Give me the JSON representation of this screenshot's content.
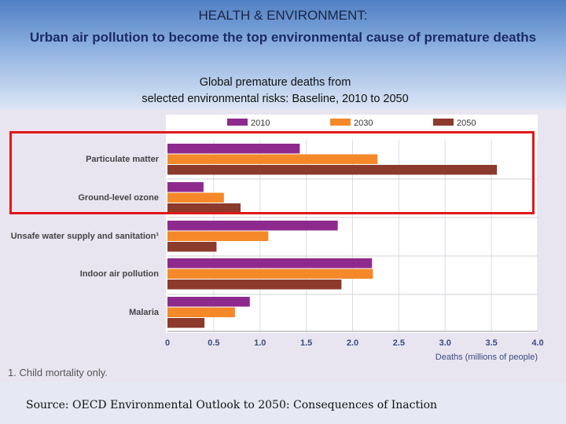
{
  "header": {
    "title": "HEALTH & ENVIRONMENT:",
    "subtitle": "Urban air pollution to become the top environmental cause of premature deaths",
    "chart_title_line1": "Global premature deaths from",
    "chart_title_line2": "selected environmental risks: Baseline, 2010 to 2050"
  },
  "footnote": "1.  Child mortality only.",
  "source": "Source: OECD Environmental Outlook to 2050: Consequences of Inaction",
  "chart_data": {
    "type": "bar",
    "orientation": "horizontal",
    "categories": [
      "Particulate matter",
      "Ground-level ozone",
      "Unsafe water supply and sanitation¹",
      "Indoor air pollution",
      "Malaria"
    ],
    "series": [
      {
        "name": "2010",
        "color": "#8e2a8e",
        "values": [
          1.43,
          0.39,
          1.84,
          2.21,
          0.89
        ]
      },
      {
        "name": "2030",
        "color": "#f5892a",
        "values": [
          2.27,
          0.61,
          1.09,
          2.22,
          0.73
        ]
      },
      {
        "name": "2050",
        "color": "#8c3a2c",
        "values": [
          3.56,
          0.79,
          0.53,
          1.88,
          0.4
        ]
      }
    ],
    "xlabel": "Deaths (millions of people)",
    "ylabel": "",
    "xlim": [
      0,
      4.0
    ],
    "xticks": [
      "0",
      "0.5",
      "1.0",
      "1.5",
      "2.0",
      "2.5",
      "3.0",
      "3.5",
      "4.0"
    ],
    "grid": true,
    "legend": "top",
    "highlight": "Particulate matter and Ground-level ozone outlined in red"
  }
}
